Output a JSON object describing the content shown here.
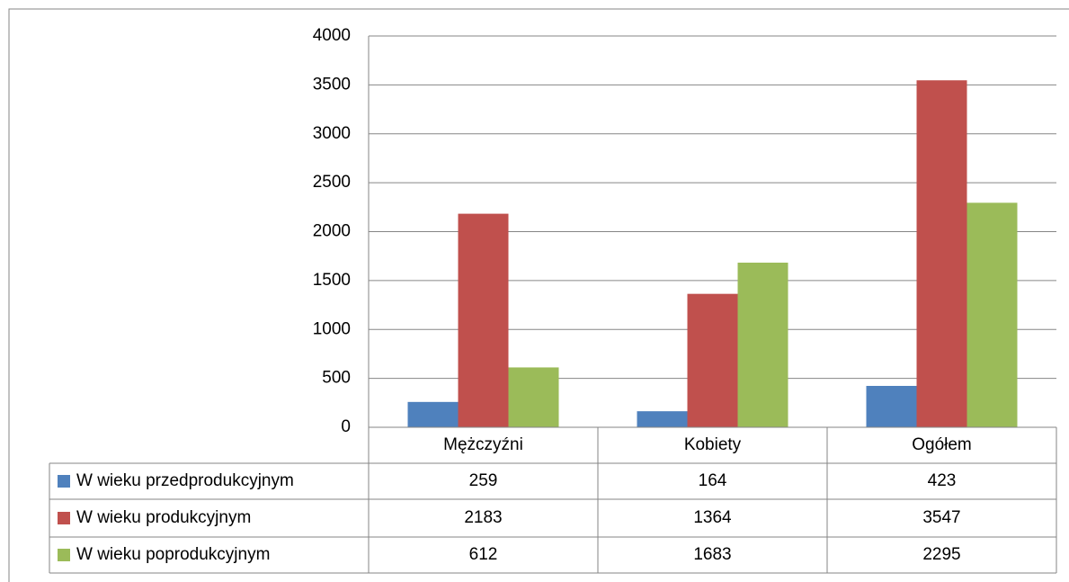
{
  "chart_data": {
    "type": "bar",
    "categories": [
      "Mężczyźni",
      "Kobiety",
      "Ogółem"
    ],
    "series": [
      {
        "name": "W wieku przedprodukcyjnym",
        "color": "#4f81bd",
        "values": [
          259,
          164,
          423
        ]
      },
      {
        "name": "W wieku produkcyjnym",
        "color": "#c0504d",
        "values": [
          2183,
          1364,
          3547
        ]
      },
      {
        "name": "W wieku poprodukcyjnym",
        "color": "#9bbb59",
        "values": [
          612,
          1683,
          2295
        ]
      }
    ],
    "ylim": [
      0,
      4000
    ],
    "yticks": [
      0,
      500,
      1000,
      1500,
      2000,
      2500,
      3000,
      3500,
      4000
    ],
    "grid": true
  }
}
